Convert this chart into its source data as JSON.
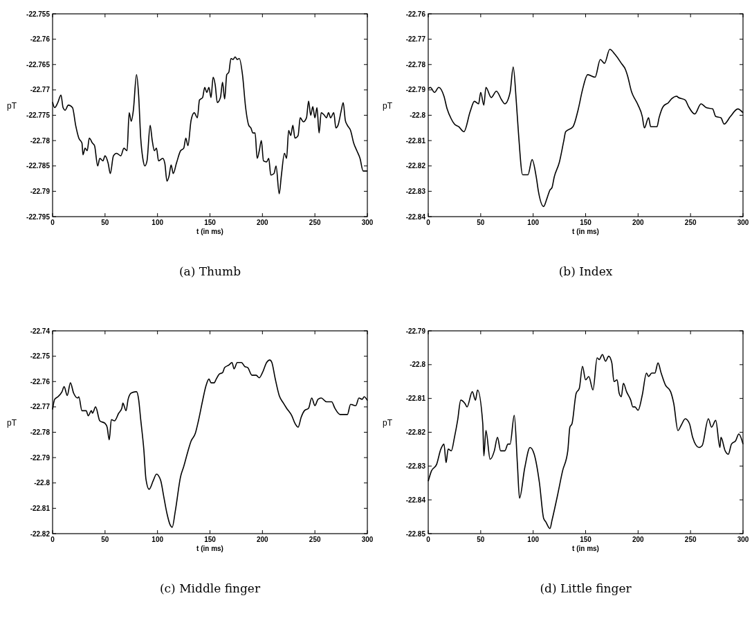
{
  "chart_data": [
    {
      "type": "line",
      "title": "(a) Thumb",
      "xlabel": "t (in ms)",
      "ylabel": "pT",
      "xlim": [
        0,
        300
      ],
      "xticks": [
        0,
        50,
        100,
        150,
        200,
        250,
        300
      ],
      "ylim": [
        -22.795,
        -22.755
      ],
      "yticks": [
        -22.795,
        -22.79,
        -22.785,
        -22.78,
        -22.775,
        -22.77,
        -22.765,
        -22.76,
        -22.755
      ],
      "color": "#000000",
      "x": [
        0,
        2,
        5,
        8,
        10,
        12,
        15,
        19,
        22,
        25,
        28,
        29,
        31,
        33,
        35,
        38,
        40,
        43,
        45,
        48,
        50,
        53,
        55,
        58,
        61,
        65,
        68,
        71,
        73,
        75,
        77,
        80,
        82,
        84,
        86,
        88,
        90,
        93,
        95,
        97,
        99,
        101,
        105,
        107,
        109,
        111,
        113,
        115,
        118,
        122,
        125,
        127,
        129,
        132,
        135,
        138,
        140,
        143,
        145,
        147,
        149,
        151,
        153,
        155,
        157,
        160,
        162,
        164,
        166,
        168,
        170,
        172,
        174,
        176,
        178,
        181,
        184,
        187,
        189,
        191,
        193,
        195,
        197,
        199,
        201,
        204,
        206,
        208,
        211,
        213,
        216,
        218,
        221,
        223,
        225,
        227,
        229,
        231,
        234,
        236,
        239,
        242,
        244,
        246,
        248,
        250,
        252,
        254,
        256,
        259,
        261,
        263,
        265,
        268,
        270,
        272,
        275,
        277,
        279,
        281,
        284,
        287,
        290,
        293,
        296,
        300
      ],
      "values": [
        -22.7724,
        -22.7735,
        -22.7725,
        -22.771,
        -22.7735,
        -22.774,
        -22.773,
        -22.7735,
        -22.777,
        -22.7795,
        -22.7805,
        -22.7828,
        -22.7815,
        -22.782,
        -22.7795,
        -22.7805,
        -22.781,
        -22.785,
        -22.7835,
        -22.784,
        -22.783,
        -22.7845,
        -22.7865,
        -22.783,
        -22.7825,
        -22.783,
        -22.7815,
        -22.782,
        -22.7745,
        -22.7762,
        -22.774,
        -22.767,
        -22.771,
        -22.7795,
        -22.7835,
        -22.785,
        -22.784,
        -22.777,
        -22.78,
        -22.782,
        -22.7815,
        -22.784,
        -22.7835,
        -22.7845,
        -22.788,
        -22.787,
        -22.7848,
        -22.7865,
        -22.7845,
        -22.782,
        -22.7815,
        -22.7795,
        -22.781,
        -22.776,
        -22.7745,
        -22.7755,
        -22.772,
        -22.7715,
        -22.7695,
        -22.7705,
        -22.7695,
        -22.7715,
        -22.7675,
        -22.769,
        -22.7725,
        -22.7715,
        -22.7685,
        -22.7718,
        -22.767,
        -22.7665,
        -22.7638,
        -22.764,
        -22.7635,
        -22.764,
        -22.7638,
        -22.767,
        -22.7735,
        -22.777,
        -22.7775,
        -22.7785,
        -22.7785,
        -22.7835,
        -22.782,
        -22.78,
        -22.784,
        -22.7842,
        -22.7835,
        -22.7868,
        -22.7865,
        -22.785,
        -22.7905,
        -22.787,
        -22.7825,
        -22.7835,
        -22.778,
        -22.779,
        -22.777,
        -22.7795,
        -22.779,
        -22.7755,
        -22.7763,
        -22.7755,
        -22.7722,
        -22.775,
        -22.7733,
        -22.7755,
        -22.7735,
        -22.7785,
        -22.7745,
        -22.775,
        -22.7755,
        -22.7745,
        -22.7755,
        -22.7745,
        -22.7775,
        -22.777,
        -22.7742,
        -22.7725,
        -22.776,
        -22.777,
        -22.778,
        -22.7805,
        -22.782,
        -22.7835,
        -22.786,
        -22.786
      ]
    },
    {
      "type": "line",
      "title": "(b) Index",
      "xlabel": "t (in ms)",
      "ylabel": "pT",
      "xlim": [
        0,
        300
      ],
      "xticks": [
        0,
        50,
        100,
        150,
        200,
        250,
        300
      ],
      "ylim": [
        -22.84,
        -22.76
      ],
      "yticks": [
        -22.84,
        -22.83,
        -22.82,
        -22.81,
        -22.8,
        -22.79,
        -22.78,
        -22.77,
        -22.76
      ],
      "color": "#000000",
      "x": [
        0,
        2,
        6,
        10,
        15,
        18,
        22,
        25,
        29,
        34,
        40,
        44,
        48,
        50,
        53,
        55,
        60,
        65,
        70,
        73,
        78,
        81,
        84,
        86,
        90,
        95,
        99,
        103,
        105,
        110,
        113,
        116,
        118,
        120,
        125,
        129,
        131,
        138,
        143,
        147,
        152,
        159,
        164,
        168,
        173,
        178,
        184,
        188,
        190,
        194,
        195,
        200,
        204,
        206,
        210,
        212,
        218,
        220,
        224,
        229,
        232,
        237,
        238,
        245,
        248,
        254,
        260,
        265,
        271,
        274,
        279,
        282,
        288,
        295,
        300
      ],
      "values": [
        -22.7895,
        -22.789,
        -22.791,
        -22.789,
        -22.7925,
        -22.7975,
        -22.8015,
        -22.8035,
        -22.8045,
        -22.8065,
        -22.7985,
        -22.7945,
        -22.7955,
        -22.791,
        -22.796,
        -22.789,
        -22.793,
        -22.7905,
        -22.794,
        -22.7955,
        -22.791,
        -22.781,
        -22.795,
        -22.807,
        -22.8235,
        -22.8235,
        -22.8175,
        -22.8245,
        -22.83,
        -22.836,
        -22.833,
        -22.8295,
        -22.8285,
        -22.8245,
        -22.8185,
        -22.8105,
        -22.8065,
        -22.8045,
        -22.7976,
        -22.79,
        -22.784,
        -22.785,
        -22.778,
        -22.7795,
        -22.774,
        -22.776,
        -22.7795,
        -22.782,
        -22.7845,
        -22.791,
        -22.792,
        -22.796,
        -22.8005,
        -22.805,
        -22.801,
        -22.8045,
        -22.8045,
        -22.801,
        -22.7965,
        -22.795,
        -22.7935,
        -22.7925,
        -22.7929,
        -22.794,
        -22.7965,
        -22.7995,
        -22.7955,
        -22.797,
        -22.7975,
        -22.8005,
        -22.801,
        -22.8035,
        -22.8005,
        -22.7975,
        -22.799
      ]
    },
    {
      "type": "line",
      "title": "(c) Middle finger",
      "xlabel": "t (in ms)",
      "ylabel": "pT",
      "xlim": [
        0,
        300
      ],
      "xticks": [
        0,
        50,
        100,
        150,
        200,
        250,
        300
      ],
      "ylim": [
        -22.82,
        -22.74
      ],
      "yticks": [
        -22.82,
        -22.81,
        -22.8,
        -22.79,
        -22.78,
        -22.77,
        -22.76,
        -22.75,
        -22.74
      ],
      "color": "#000000",
      "x": [
        0,
        2,
        5,
        9,
        11,
        14,
        17,
        20,
        24,
        25,
        28,
        32,
        34,
        37,
        38,
        41,
        45,
        50,
        52,
        54,
        56,
        59,
        63,
        66,
        67,
        70,
        72,
        75,
        80,
        82,
        84,
        87,
        89,
        92,
        96,
        99,
        103,
        106,
        109,
        112,
        114,
        117,
        122,
        125,
        129,
        132,
        136,
        139,
        143,
        146,
        149,
        151,
        154,
        156,
        159,
        162,
        164,
        168,
        171,
        173,
        176,
        180,
        183,
        186,
        190,
        194,
        197,
        200,
        204,
        207,
        209,
        212,
        216,
        220,
        223,
        228,
        231,
        234,
        237,
        240,
        244,
        247,
        250,
        253,
        256,
        261,
        266,
        269,
        274,
        281,
        284,
        289,
        292,
        295,
        297,
        300
      ],
      "values": [
        -22.771,
        -22.767,
        -22.766,
        -22.764,
        -22.762,
        -22.7655,
        -22.7605,
        -22.7645,
        -22.7665,
        -22.766,
        -22.7715,
        -22.7715,
        -22.7735,
        -22.7715,
        -22.7725,
        -22.77,
        -22.7755,
        -22.7765,
        -22.778,
        -22.783,
        -22.775,
        -22.7755,
        -22.7725,
        -22.7705,
        -22.7685,
        -22.7715,
        -22.767,
        -22.7645,
        -22.764,
        -22.767,
        -22.775,
        -22.787,
        -22.7985,
        -22.8025,
        -22.799,
        -22.7965,
        -22.799,
        -22.8055,
        -22.812,
        -22.8165,
        -22.8175,
        -22.811,
        -22.7975,
        -22.7935,
        -22.7875,
        -22.7835,
        -22.7805,
        -22.7755,
        -22.7675,
        -22.762,
        -22.759,
        -22.7605,
        -22.7605,
        -22.759,
        -22.757,
        -22.7565,
        -22.7545,
        -22.7535,
        -22.7525,
        -22.755,
        -22.7525,
        -22.7525,
        -22.754,
        -22.7545,
        -22.7575,
        -22.7575,
        -22.7585,
        -22.7565,
        -22.7525,
        -22.7515,
        -22.7525,
        -22.7585,
        -22.7655,
        -22.7685,
        -22.7705,
        -22.7735,
        -22.7765,
        -22.778,
        -22.774,
        -22.7715,
        -22.7705,
        -22.7665,
        -22.7695,
        -22.767,
        -22.7665,
        -22.768,
        -22.768,
        -22.7705,
        -22.773,
        -22.773,
        -22.769,
        -22.7695,
        -22.7665,
        -22.767,
        -22.766,
        -22.7675
      ]
    },
    {
      "type": "line",
      "title": "(d) Little finger",
      "xlabel": "t (in ms)",
      "ylabel": "pT",
      "xlim": [
        0,
        300
      ],
      "xticks": [
        0,
        50,
        100,
        150,
        200,
        250,
        300
      ],
      "ylim": [
        -22.85,
        -22.79
      ],
      "yticks": [
        -22.85,
        -22.84,
        -22.83,
        -22.82,
        -22.81,
        -22.8,
        -22.79
      ],
      "color": "#000000",
      "x": [
        0,
        3,
        8,
        12,
        15,
        17,
        19,
        22,
        25,
        28,
        31,
        35,
        37,
        42,
        45,
        47,
        52,
        53,
        55,
        59,
        63,
        66,
        69,
        73,
        76,
        78,
        82,
        85,
        87,
        92,
        97,
        101,
        106,
        110,
        112,
        116,
        118,
        123,
        128,
        133,
        135,
        137,
        141,
        144,
        147,
        150,
        153,
        157,
        161,
        163,
        166,
        169,
        172,
        175,
        177,
        180,
        182,
        184,
        186,
        189,
        193,
        195,
        197,
        200,
        204,
        208,
        210,
        213,
        216,
        219,
        222,
        226,
        231,
        234,
        238,
        241,
        245,
        249,
        252,
        258,
        261,
        267,
        270,
        274,
        278,
        279,
        283,
        286,
        289,
        293,
        296,
        300
      ],
      "values": [
        -22.8345,
        -22.8315,
        -22.8295,
        -22.825,
        -22.8235,
        -22.829,
        -22.825,
        -22.8255,
        -22.8215,
        -22.8165,
        -22.8105,
        -22.8115,
        -22.8125,
        -22.808,
        -22.8105,
        -22.8075,
        -22.8175,
        -22.827,
        -22.8195,
        -22.828,
        -22.8255,
        -22.8215,
        -22.8255,
        -22.8255,
        -22.8235,
        -22.8235,
        -22.815,
        -22.8295,
        -22.8395,
        -22.8305,
        -22.8245,
        -22.8265,
        -22.835,
        -22.8455,
        -22.8465,
        -22.8485,
        -22.846,
        -22.839,
        -22.8315,
        -22.8255,
        -22.8185,
        -22.8175,
        -22.8085,
        -22.807,
        -22.8005,
        -22.8045,
        -22.8035,
        -22.8075,
        -22.798,
        -22.7985,
        -22.797,
        -22.799,
        -22.7975,
        -22.7995,
        -22.805,
        -22.8045,
        -22.8085,
        -22.8095,
        -22.8055,
        -22.808,
        -22.8105,
        -22.8125,
        -22.8125,
        -22.8135,
        -22.809,
        -22.8025,
        -22.8035,
        -22.8025,
        -22.8025,
        -22.7995,
        -22.8025,
        -22.806,
        -22.808,
        -22.8115,
        -22.8195,
        -22.818,
        -22.816,
        -22.8175,
        -22.8215,
        -22.8245,
        -22.824,
        -22.816,
        -22.8185,
        -22.8165,
        -22.8245,
        -22.8215,
        -22.8255,
        -22.8265,
        -22.8235,
        -22.8225,
        -22.8205,
        -22.8235
      ]
    }
  ]
}
